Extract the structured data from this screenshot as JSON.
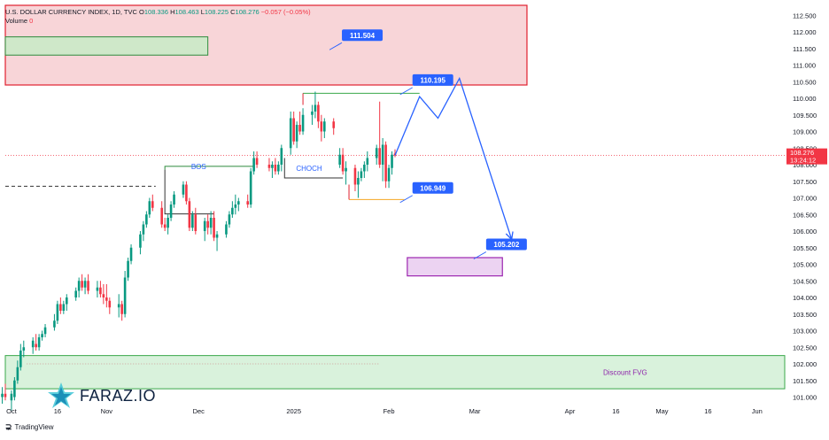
{
  "header": {
    "symbol": "U.S. DOLLAR CURRENCY INDEX, 1D, TVC",
    "o_label": "O",
    "o": "108.336",
    "h_label": "H",
    "h": "108.463",
    "l_label": "L",
    "l": "108.225",
    "c_label": "C",
    "c": "108.276",
    "change": "−0.057 (−0.05%)",
    "volume_label": "Volume",
    "volume": "0"
  },
  "footer": {
    "brand": "TradingView"
  },
  "watermark": {
    "text": "FARAZ.IO",
    "icon": "faraz-star-logo"
  },
  "colors": {
    "up": "#089981",
    "down": "#f23645",
    "projection": "#2962ff",
    "supply_zone": "#f8d5d8",
    "demand_zone": "#d9f2dc",
    "target_box": "#ecd3f2"
  },
  "chart_data": {
    "type": "candlestick",
    "title": "U.S. DOLLAR CURRENCY INDEX, 1D, TVC",
    "xlabel": "",
    "ylabel": "",
    "ylim": [
      100.8,
      112.8
    ],
    "y_ticks": [
      "112.500",
      "112.000",
      "111.500",
      "111.000",
      "110.500",
      "110.000",
      "109.500",
      "109.000",
      "108.500",
      "108.000",
      "107.500",
      "107.000",
      "106.500",
      "106.000",
      "105.500",
      "105.000",
      "104.500",
      "104.000",
      "103.500",
      "103.000",
      "102.500",
      "102.000",
      "101.500",
      "101.000"
    ],
    "x_ticks": [
      {
        "label": "Oct",
        "day": 0
      },
      {
        "label": "16",
        "day": 15
      },
      {
        "label": "Nov",
        "day": 31
      },
      {
        "label": "Dec",
        "day": 61
      },
      {
        "label": "2025",
        "day": 92
      },
      {
        "label": "Feb",
        "day": 123
      },
      {
        "label": "Mar",
        "day": 151
      },
      {
        "label": "Apr",
        "day": 182
      },
      {
        "label": "16",
        "day": 197
      },
      {
        "label": "May",
        "day": 212
      },
      {
        "label": "16",
        "day": 227
      },
      {
        "label": "Jun",
        "day": 243
      }
    ],
    "x_range_days": [
      -2,
      252
    ],
    "price_label": {
      "value": "108.276",
      "countdown": "13:24:12"
    },
    "candles": [
      {
        "d": -3,
        "o": 101.0,
        "h": 101.3,
        "l": 100.8,
        "c": 101.1
      },
      {
        "d": -2,
        "o": 101.1,
        "h": 101.4,
        "l": 100.9,
        "c": 101.0
      },
      {
        "d": 0,
        "o": 100.9,
        "h": 101.2,
        "l": 100.6,
        "c": 101.1
      },
      {
        "d": 1,
        "o": 101.0,
        "h": 101.6,
        "l": 100.9,
        "c": 101.5
      },
      {
        "d": 2,
        "o": 101.5,
        "h": 102.1,
        "l": 101.4,
        "c": 101.9
      },
      {
        "d": 3,
        "o": 101.9,
        "h": 102.6,
        "l": 101.8,
        "c": 102.4
      },
      {
        "d": 4,
        "o": 102.4,
        "h": 102.7,
        "l": 102.2,
        "c": 102.5
      },
      {
        "d": 7,
        "o": 102.5,
        "h": 102.8,
        "l": 102.3,
        "c": 102.7
      },
      {
        "d": 8,
        "o": 102.6,
        "h": 102.9,
        "l": 102.4,
        "c": 102.5
      },
      {
        "d": 9,
        "o": 102.5,
        "h": 102.9,
        "l": 102.4,
        "c": 102.8
      },
      {
        "d": 10,
        "o": 102.8,
        "h": 103.0,
        "l": 102.7,
        "c": 102.9
      },
      {
        "d": 11,
        "o": 102.9,
        "h": 103.2,
        "l": 102.8,
        "c": 103.1
      },
      {
        "d": 14,
        "o": 103.1,
        "h": 103.5,
        "l": 103.0,
        "c": 103.3
      },
      {
        "d": 15,
        "o": 103.3,
        "h": 103.9,
        "l": 103.2,
        "c": 103.8
      },
      {
        "d": 16,
        "o": 103.8,
        "h": 104.0,
        "l": 103.5,
        "c": 103.6
      },
      {
        "d": 17,
        "o": 103.6,
        "h": 103.9,
        "l": 103.5,
        "c": 103.8
      },
      {
        "d": 18,
        "o": 103.8,
        "h": 104.1,
        "l": 103.6,
        "c": 104.0
      },
      {
        "d": 21,
        "o": 104.0,
        "h": 104.3,
        "l": 103.9,
        "c": 104.2
      },
      {
        "d": 22,
        "o": 104.2,
        "h": 104.6,
        "l": 104.0,
        "c": 104.5
      },
      {
        "d": 23,
        "o": 104.5,
        "h": 104.7,
        "l": 104.2,
        "c": 104.3
      },
      {
        "d": 24,
        "o": 104.3,
        "h": 104.6,
        "l": 104.1,
        "c": 104.5
      },
      {
        "d": 25,
        "o": 104.5,
        "h": 104.7,
        "l": 104.1,
        "c": 104.2
      },
      {
        "d": 28,
        "o": 104.2,
        "h": 104.5,
        "l": 104.0,
        "c": 104.3
      },
      {
        "d": 29,
        "o": 104.3,
        "h": 104.5,
        "l": 104.0,
        "c": 104.1
      },
      {
        "d": 30,
        "o": 104.1,
        "h": 104.4,
        "l": 103.8,
        "c": 104.0
      },
      {
        "d": 31,
        "o": 104.0,
        "h": 104.4,
        "l": 103.7,
        "c": 103.9
      },
      {
        "d": 32,
        "o": 103.9,
        "h": 104.0,
        "l": 103.5,
        "c": 103.7
      },
      {
        "d": 35,
        "o": 103.7,
        "h": 104.1,
        "l": 103.4,
        "c": 103.8
      },
      {
        "d": 36,
        "o": 103.8,
        "h": 103.9,
        "l": 103.3,
        "c": 103.5
      },
      {
        "d": 37,
        "o": 103.5,
        "h": 104.8,
        "l": 103.4,
        "c": 104.6
      },
      {
        "d": 38,
        "o": 104.6,
        "h": 105.2,
        "l": 104.5,
        "c": 105.1
      },
      {
        "d": 39,
        "o": 105.1,
        "h": 105.6,
        "l": 105.0,
        "c": 105.5
      },
      {
        "d": 42,
        "o": 105.5,
        "h": 106.0,
        "l": 105.3,
        "c": 105.9
      },
      {
        "d": 43,
        "o": 105.9,
        "h": 106.3,
        "l": 105.7,
        "c": 106.2
      },
      {
        "d": 44,
        "o": 106.2,
        "h": 106.6,
        "l": 106.1,
        "c": 106.5
      },
      {
        "d": 45,
        "o": 106.5,
        "h": 107.0,
        "l": 106.4,
        "c": 106.9
      },
      {
        "d": 46,
        "o": 106.9,
        "h": 107.1,
        "l": 106.6,
        "c": 106.7
      },
      {
        "d": 49,
        "o": 106.7,
        "h": 106.9,
        "l": 106.1,
        "c": 106.2
      },
      {
        "d": 50,
        "o": 106.2,
        "h": 106.4,
        "l": 106.0,
        "c": 106.1
      },
      {
        "d": 51,
        "o": 106.1,
        "h": 106.5,
        "l": 105.9,
        "c": 106.4
      },
      {
        "d": 52,
        "o": 106.4,
        "h": 106.9,
        "l": 106.3,
        "c": 106.8
      },
      {
        "d": 53,
        "o": 106.8,
        "h": 107.2,
        "l": 106.7,
        "c": 107.1
      },
      {
        "d": 56,
        "o": 107.1,
        "h": 107.5,
        "l": 107.0,
        "c": 107.4
      },
      {
        "d": 57,
        "o": 107.4,
        "h": 107.5,
        "l": 106.8,
        "c": 106.9
      },
      {
        "d": 58,
        "o": 106.9,
        "h": 107.0,
        "l": 106.0,
        "c": 106.1
      },
      {
        "d": 59,
        "o": 106.1,
        "h": 106.6,
        "l": 106.0,
        "c": 106.5
      },
      {
        "d": 60,
        "o": 106.5,
        "h": 106.7,
        "l": 105.9,
        "c": 106.0
      },
      {
        "d": 63,
        "o": 106.0,
        "h": 106.4,
        "l": 105.7,
        "c": 106.3
      },
      {
        "d": 64,
        "o": 106.3,
        "h": 106.5,
        "l": 105.9,
        "c": 106.1
      },
      {
        "d": 65,
        "o": 106.1,
        "h": 106.6,
        "l": 105.9,
        "c": 106.4
      },
      {
        "d": 66,
        "o": 106.4,
        "h": 106.6,
        "l": 105.7,
        "c": 105.8
      },
      {
        "d": 67,
        "o": 105.8,
        "h": 106.0,
        "l": 105.4,
        "c": 105.9
      },
      {
        "d": 70,
        "o": 105.9,
        "h": 106.3,
        "l": 105.8,
        "c": 106.2
      },
      {
        "d": 71,
        "o": 106.2,
        "h": 106.6,
        "l": 106.1,
        "c": 106.5
      },
      {
        "d": 72,
        "o": 106.5,
        "h": 106.9,
        "l": 106.4,
        "c": 106.7
      },
      {
        "d": 73,
        "o": 106.7,
        "h": 107.1,
        "l": 106.5,
        "c": 106.8
      },
      {
        "d": 74,
        "o": 106.8,
        "h": 107.0,
        "l": 106.6,
        "c": 106.9
      },
      {
        "d": 77,
        "o": 106.9,
        "h": 107.1,
        "l": 106.7,
        "c": 106.8
      },
      {
        "d": 78,
        "o": 106.8,
        "h": 107.9,
        "l": 106.7,
        "c": 107.8
      },
      {
        "d": 79,
        "o": 107.8,
        "h": 108.4,
        "l": 107.7,
        "c": 108.2
      },
      {
        "d": 80,
        "o": 108.2,
        "h": 108.4,
        "l": 107.9,
        "c": 108.0
      },
      {
        "d": 84,
        "o": 108.0,
        "h": 108.2,
        "l": 107.8,
        "c": 107.9
      },
      {
        "d": 85,
        "o": 107.9,
        "h": 108.1,
        "l": 107.6,
        "c": 108.0
      },
      {
        "d": 86,
        "o": 108.0,
        "h": 108.2,
        "l": 107.7,
        "c": 107.8
      },
      {
        "d": 87,
        "o": 107.8,
        "h": 108.1,
        "l": 107.7,
        "c": 108.0
      },
      {
        "d": 88,
        "o": 108.0,
        "h": 108.6,
        "l": 107.8,
        "c": 108.5
      },
      {
        "d": 91,
        "o": 108.5,
        "h": 109.6,
        "l": 108.3,
        "c": 109.4
      },
      {
        "d": 92,
        "o": 109.4,
        "h": 109.6,
        "l": 108.6,
        "c": 108.7
      },
      {
        "d": 93,
        "o": 108.7,
        "h": 109.3,
        "l": 108.5,
        "c": 109.2
      },
      {
        "d": 94,
        "o": 109.2,
        "h": 109.6,
        "l": 108.9,
        "c": 109.0
      },
      {
        "d": 95,
        "o": 109.0,
        "h": 109.7,
        "l": 108.9,
        "c": 109.5
      },
      {
        "d": 98,
        "o": 109.5,
        "h": 109.8,
        "l": 109.2,
        "c": 109.6
      },
      {
        "d": 99,
        "o": 109.6,
        "h": 110.2,
        "l": 109.4,
        "c": 109.8
      },
      {
        "d": 100,
        "o": 109.8,
        "h": 109.9,
        "l": 109.1,
        "c": 109.3
      },
      {
        "d": 101,
        "o": 109.3,
        "h": 109.5,
        "l": 108.7,
        "c": 109.0
      },
      {
        "d": 102,
        "o": 109.0,
        "h": 109.4,
        "l": 108.8,
        "c": 109.3
      },
      {
        "d": 105,
        "o": 109.3,
        "h": 109.4,
        "l": 108.9,
        "c": 109.1
      },
      {
        "d": 107,
        "o": 108.0,
        "h": 108.5,
        "l": 107.9,
        "c": 108.3
      },
      {
        "d": 108,
        "o": 108.3,
        "h": 108.5,
        "l": 107.7,
        "c": 107.8
      },
      {
        "d": 109,
        "o": 107.8,
        "h": 108.1,
        "l": 107.4,
        "c": 107.9
      },
      {
        "d": 112,
        "o": 107.9,
        "h": 108.0,
        "l": 107.2,
        "c": 107.4
      },
      {
        "d": 113,
        "o": 107.4,
        "h": 107.8,
        "l": 107.0,
        "c": 107.6
      },
      {
        "d": 114,
        "o": 107.6,
        "h": 107.9,
        "l": 107.5,
        "c": 107.8
      },
      {
        "d": 115,
        "o": 107.8,
        "h": 108.1,
        "l": 107.6,
        "c": 108.0
      },
      {
        "d": 116,
        "o": 108.0,
        "h": 108.4,
        "l": 107.8,
        "c": 108.2
      },
      {
        "d": 119,
        "o": 108.2,
        "h": 108.6,
        "l": 108.0,
        "c": 108.5
      },
      {
        "d": 120,
        "o": 108.5,
        "h": 109.9,
        "l": 107.9,
        "c": 108.0
      },
      {
        "d": 121,
        "o": 108.0,
        "h": 108.8,
        "l": 107.5,
        "c": 108.6
      },
      {
        "d": 122,
        "o": 108.6,
        "h": 108.7,
        "l": 107.3,
        "c": 107.5
      },
      {
        "d": 123,
        "o": 107.5,
        "h": 108.0,
        "l": 107.3,
        "c": 107.9
      },
      {
        "d": 124,
        "o": 107.9,
        "h": 108.4,
        "l": 107.7,
        "c": 108.3
      },
      {
        "d": 125,
        "o": 108.336,
        "h": 108.463,
        "l": 108.225,
        "c": 108.276
      }
    ],
    "annotations": {
      "supply_zone": {
        "from_day": -2,
        "to_day": 168,
        "y_low": 110.4,
        "y_high": 112.8
      },
      "supply_inner": {
        "from_day": -2,
        "to_day": 64,
        "y_low": 111.3,
        "y_high": 111.85
      },
      "demand_zone": {
        "from_day": -2,
        "to_day": 252,
        "y_low": 101.25,
        "y_high": 102.25,
        "label": "Discount FVG"
      },
      "target_box": {
        "from_day": 129,
        "to_day": 160,
        "y_low": 104.65,
        "y_high": 105.2
      },
      "projection_path": [
        {
          "d": 125,
          "y": 108.28
        },
        {
          "d": 133,
          "y": 110.05
        },
        {
          "d": 139,
          "y": 109.4
        },
        {
          "d": 146,
          "y": 110.6
        },
        {
          "d": 163,
          "y": 105.75
        }
      ],
      "bos": {
        "label": "BOS",
        "y": 107.05,
        "from_day": 50,
        "to_day": 66
      },
      "choch": {
        "label": "CHOCH",
        "y": 107.9,
        "from_day": 89,
        "to_day": 108
      },
      "high_line": {
        "y": 110.15,
        "from_day": 95,
        "to_day": 133
      },
      "low_line": {
        "y": 106.95,
        "from_day": 110,
        "to_day": 128
      },
      "dashed_level": {
        "y": 107.35,
        "from_day": -2,
        "to_day": 47
      },
      "dotted_level": {
        "y": 102.0,
        "from_day": 5,
        "to_day": 120
      },
      "flags": [
        {
          "text": "111.504",
          "day": 110,
          "y": 111.9
        },
        {
          "text": "110.195",
          "day": 133,
          "y": 110.55
        },
        {
          "text": "106.949",
          "day": 133,
          "y": 107.3
        },
        {
          "text": "105.202",
          "day": 157,
          "y": 105.6
        }
      ]
    }
  }
}
